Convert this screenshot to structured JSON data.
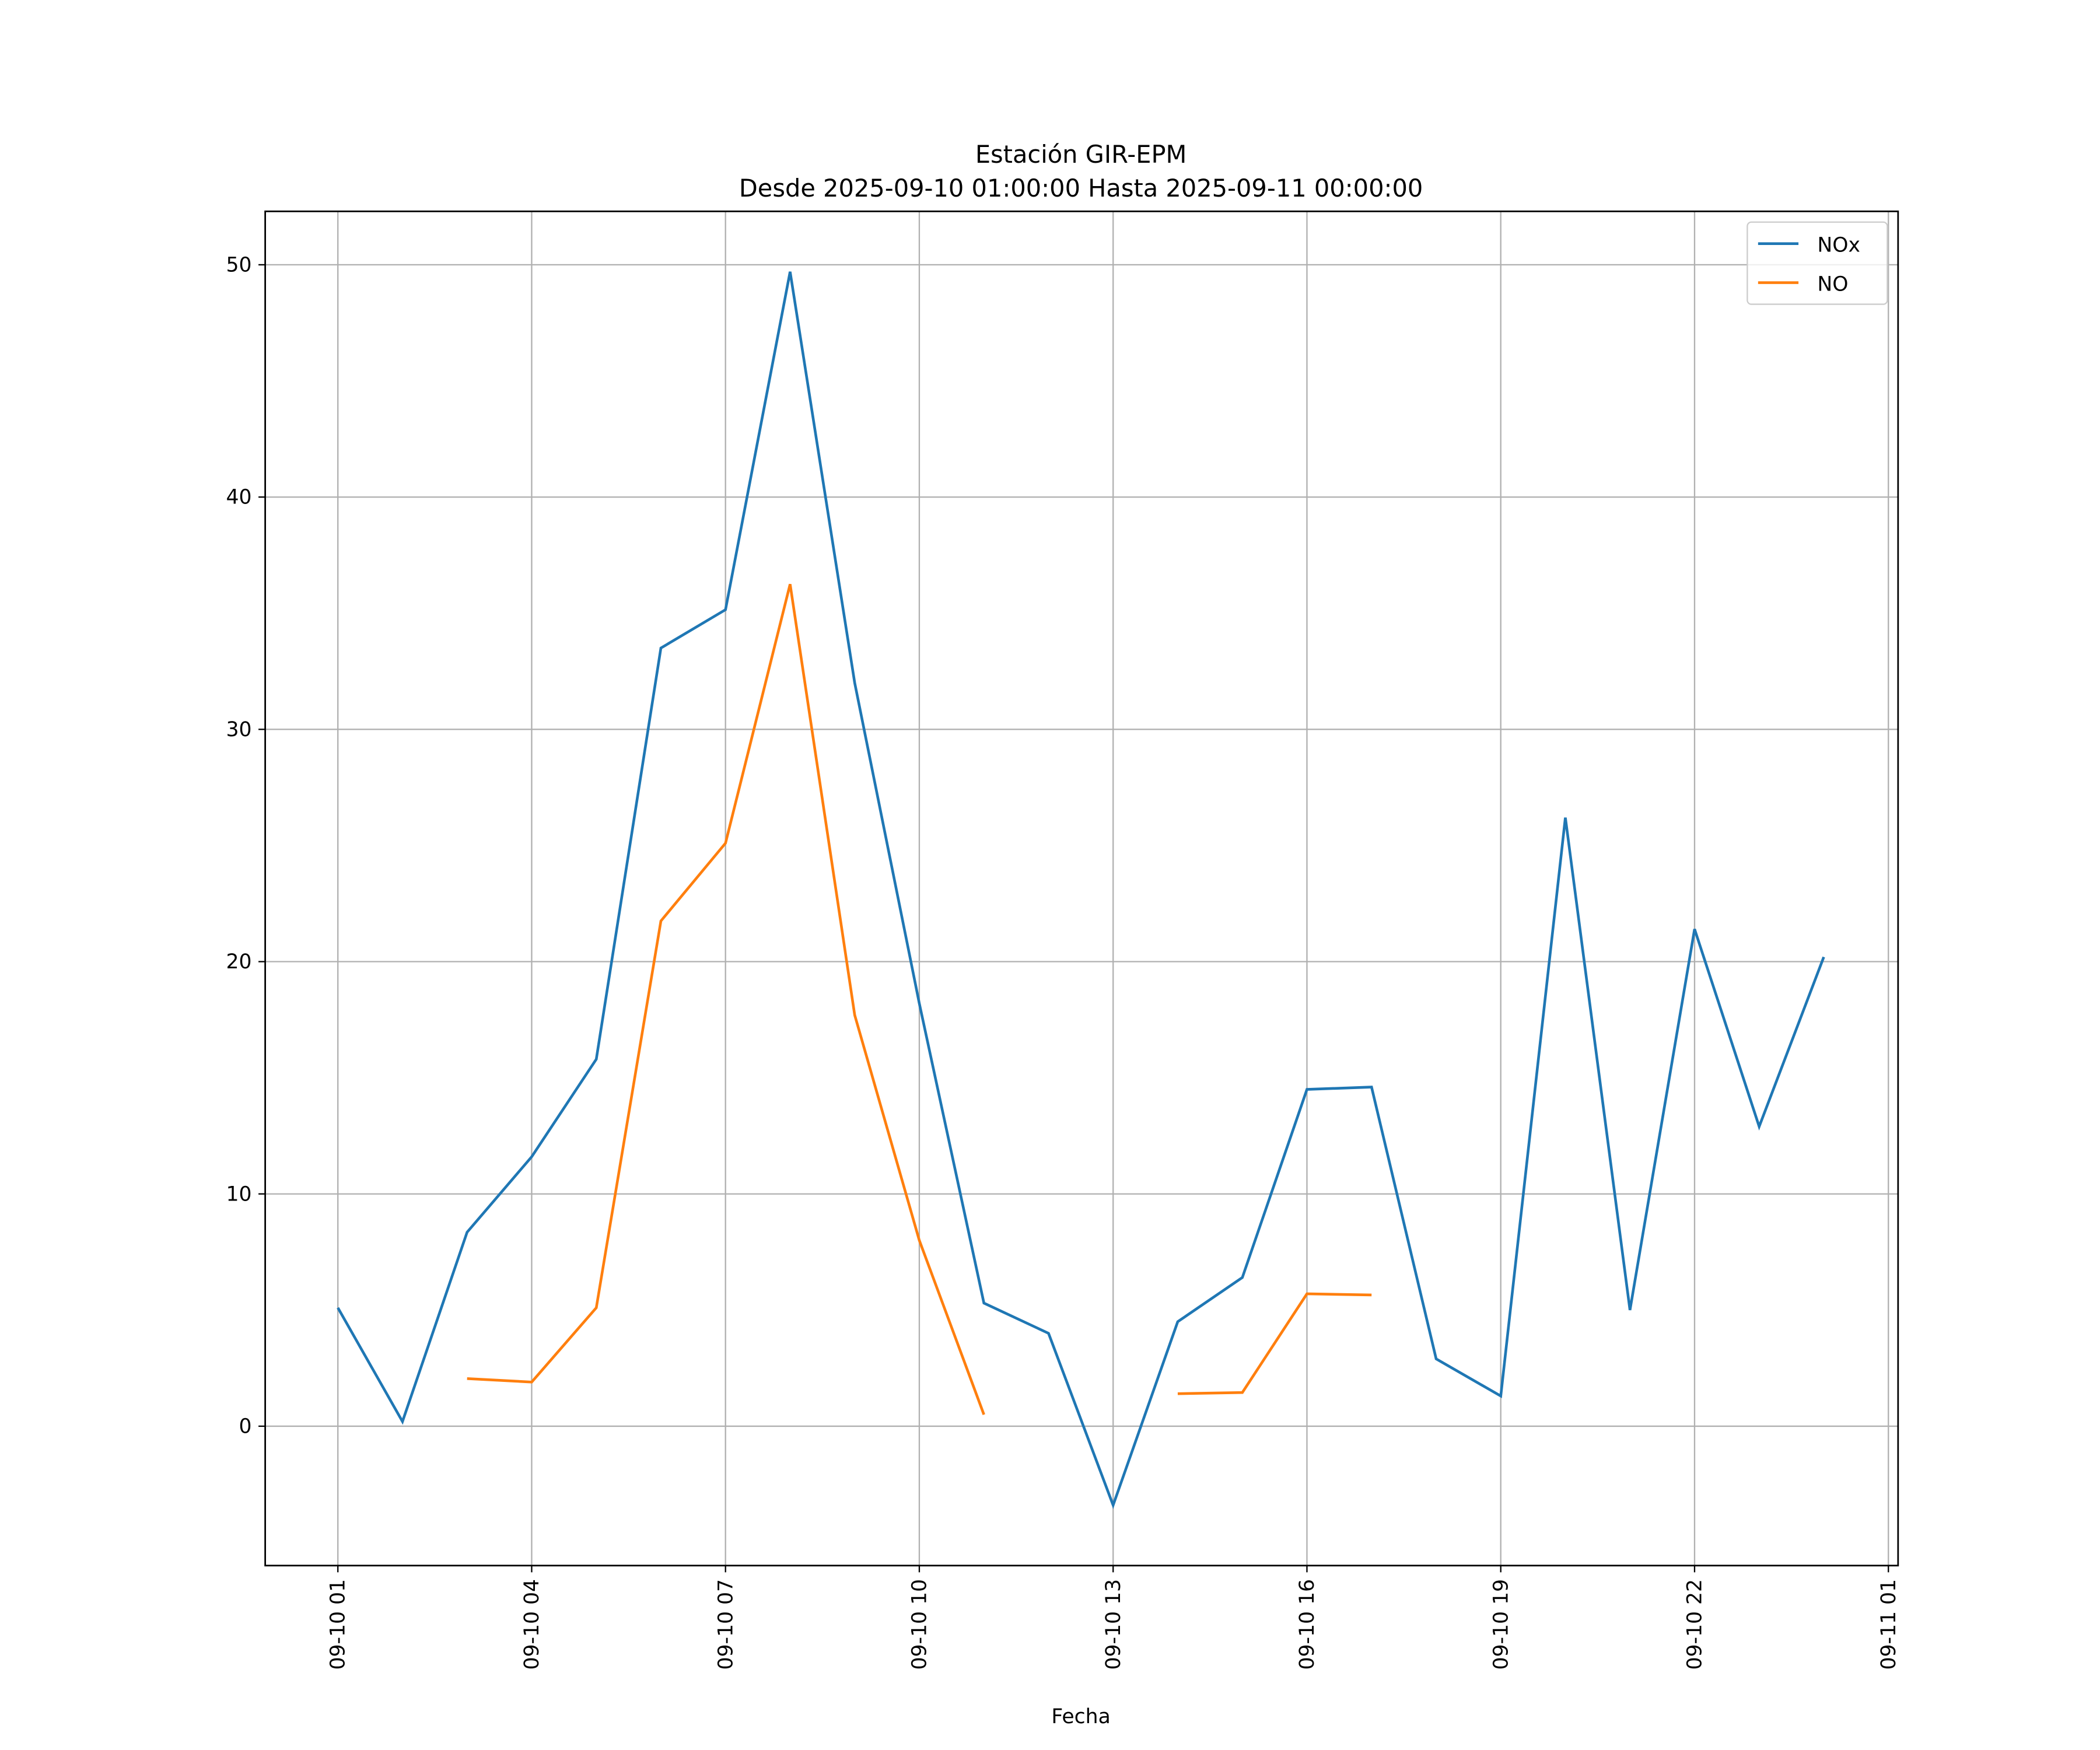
{
  "chart_data": {
    "type": "line",
    "title": "Estación GIR-EPM",
    "subtitle": "Desde 2025-09-10 01:00:00 Hasta 2025-09-11 00:00:00",
    "xlabel": "Fecha",
    "ylabel": "",
    "x_unit": "hours since 2025-09-10 00:00",
    "x": [
      1,
      2,
      3,
      4,
      5,
      6,
      7,
      8,
      9,
      10,
      11,
      12,
      13,
      14,
      15,
      16,
      17,
      18,
      19,
      20,
      21,
      22,
      23,
      24
    ],
    "series": [
      {
        "name": "NOx",
        "color": "#1f77b4",
        "values": [
          5.1,
          0.2,
          8.35,
          11.6,
          15.8,
          33.5,
          35.15,
          49.7,
          32.0,
          18.2,
          5.3,
          4.0,
          -3.4,
          4.5,
          6.4,
          14.5,
          14.6,
          2.9,
          1.3,
          26.2,
          5.0,
          21.4,
          12.9,
          20.2
        ]
      },
      {
        "name": "NO",
        "color": "#ff7f0e",
        "values": [
          null,
          null,
          2.05,
          1.9,
          5.1,
          21.75,
          25.1,
          36.25,
          17.7,
          8.0,
          0.5,
          null,
          null,
          1.4,
          1.45,
          5.7,
          5.65,
          null,
          null,
          null,
          null,
          null,
          null,
          null
        ]
      }
    ],
    "xlim": [
      -0.125,
      25.15
    ],
    "ylim": [
      -6.0,
      52.3
    ],
    "xticks": [
      {
        "value": 1,
        "label": "09-10 01"
      },
      {
        "value": 4,
        "label": "09-10 04"
      },
      {
        "value": 7,
        "label": "09-10 07"
      },
      {
        "value": 10,
        "label": "09-10 10"
      },
      {
        "value": 13,
        "label": "09-10 13"
      },
      {
        "value": 16,
        "label": "09-10 16"
      },
      {
        "value": 19,
        "label": "09-10 19"
      },
      {
        "value": 22,
        "label": "09-10 22"
      },
      {
        "value": 25,
        "label": "09-11 01"
      }
    ],
    "yticks": [
      {
        "value": 0,
        "label": "0"
      },
      {
        "value": 10,
        "label": "10"
      },
      {
        "value": 20,
        "label": "20"
      },
      {
        "value": 30,
        "label": "30"
      },
      {
        "value": 40,
        "label": "40"
      },
      {
        "value": 50,
        "label": "50"
      }
    ],
    "grid": true,
    "legend": "top-right"
  }
}
